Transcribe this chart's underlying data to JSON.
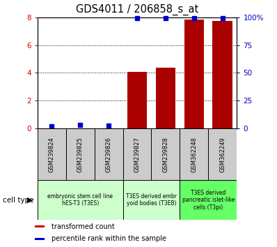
{
  "title": "GDS4011 / 206858_s_at",
  "samples": [
    "GSM239824",
    "GSM239825",
    "GSM239826",
    "GSM239827",
    "GSM239828",
    "GSM362248",
    "GSM362249"
  ],
  "transformed_count": [
    0.0,
    0.0,
    0.0,
    4.05,
    4.35,
    7.85,
    7.75
  ],
  "percentile_rank": [
    2.0,
    3.5,
    2.5,
    99.0,
    99.0,
    99.0,
    99.0
  ],
  "ylim_left": [
    0,
    8
  ],
  "ylim_right": [
    0,
    100
  ],
  "yticks_left": [
    0,
    2,
    4,
    6,
    8
  ],
  "yticks_right": [
    0,
    25,
    50,
    75,
    100
  ],
  "ytick_labels_right": [
    "0",
    "25",
    "50",
    "75",
    "100%"
  ],
  "cell_types": [
    {
      "label": "embryonic stem cell line\nhES-T3 (T3ES)",
      "start": 0,
      "end": 3,
      "color": "#ccffcc"
    },
    {
      "label": "T3ES derived embr\nyoid bodies (T3EB)",
      "start": 3,
      "end": 5,
      "color": "#ccffcc"
    },
    {
      "label": "T3ES derived\npancreatic islet-like\ncells (T3pi)",
      "start": 5,
      "end": 7,
      "color": "#66ff66"
    }
  ],
  "bar_color": "#aa0000",
  "dot_color": "#0000cc",
  "axis_color_left": "#cc0000",
  "axis_color_right": "#0000bb",
  "sample_box_color": "#cccccc",
  "legend_items": [
    {
      "label": "transformed count",
      "color": "#cc0000"
    },
    {
      "label": "percentile rank within the sample",
      "color": "#0000cc"
    }
  ],
  "fig_width": 3.98,
  "fig_height": 3.54,
  "dpi": 100
}
